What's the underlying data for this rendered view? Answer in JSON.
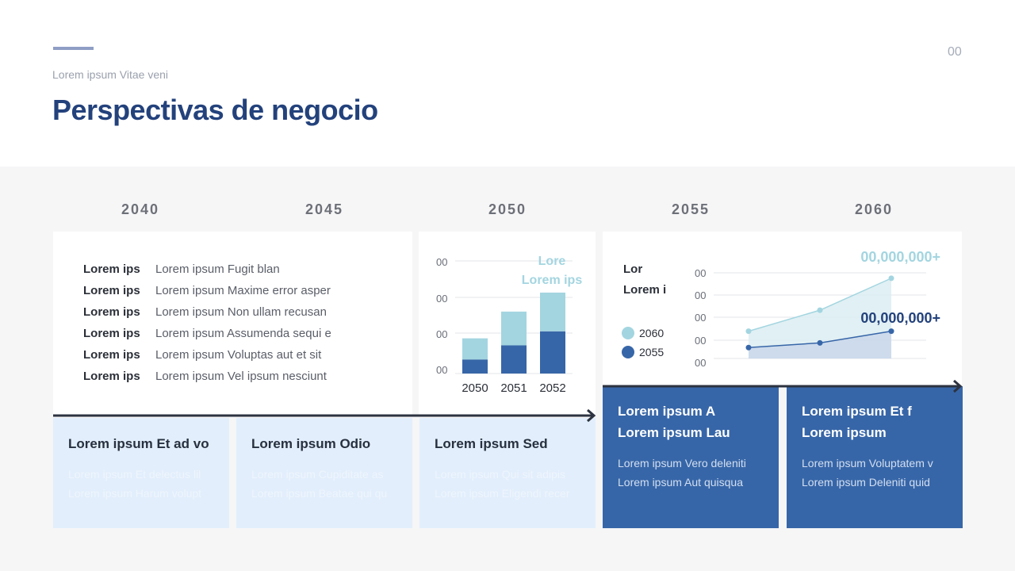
{
  "header": {
    "subtitle": "Lorem ipsum Vitae veni",
    "title": "Perspectivas de negocio",
    "page_number": "00"
  },
  "years": [
    "2040",
    "2045",
    "2050",
    "2055",
    "2060"
  ],
  "list": [
    {
      "key": "Lorem ips",
      "value": "Lorem ipsum Fugit blan"
    },
    {
      "key": "Lorem ips",
      "value": "Lorem ipsum Maxime error asper"
    },
    {
      "key": "Lorem ips",
      "value": "Lorem ipsum Non ullam recusan"
    },
    {
      "key": "Lorem ips",
      "value": "Lorem ipsum Assumenda sequi e"
    },
    {
      "key": "Lorem ips",
      "value": "Lorem ipsum Voluptas aut et sit"
    },
    {
      "key": "Lorem ips",
      "value": "Lorem ipsum Vel ipsum nesciunt"
    }
  ],
  "bar_chart": {
    "legend_title": "Lore",
    "legend_sub": "Lorem ips",
    "y_labels": [
      "00",
      "00",
      "00",
      "00"
    ],
    "categories": [
      "2050",
      "2051",
      "2052"
    ]
  },
  "line_chart": {
    "title_1": "Lor",
    "title_2": "Lorem i",
    "legend": [
      {
        "label": "2060",
        "color": "#a3d5e0"
      },
      {
        "label": "2055",
        "color": "#3766a8"
      }
    ],
    "y_labels": [
      "00",
      "00",
      "00",
      "00",
      "00"
    ],
    "value_top": "00,000,000+",
    "value_bottom": "00,000,000+"
  },
  "chart_data": [
    {
      "type": "bar",
      "categories": [
        "2050",
        "2051",
        "2052"
      ],
      "series": [
        {
          "name": "",
          "values": [
            20,
            40,
            60
          ]
        },
        {
          "name": "",
          "values": [
            30,
            48,
            55
          ]
        }
      ],
      "ylim": [
        0,
        160
      ]
    },
    {
      "type": "area",
      "x": [
        1,
        2,
        3
      ],
      "series": [
        {
          "name": "2060",
          "values": [
            35,
            62,
            103
          ]
        },
        {
          "name": "2055",
          "values": [
            14,
            20,
            35
          ]
        }
      ],
      "ylim": [
        0,
        110
      ]
    }
  ],
  "light_boxes": [
    {
      "head": "Lorem ipsum Et ad vo",
      "line1": "Lorem ipsum Et delectus lil",
      "line2": "Lorem ipsum Harum volupt"
    },
    {
      "head": "Lorem ipsum Odio",
      "line1": "Lorem ipsum Cupiditate as",
      "line2": "Lorem ipsum Beatae qui qu"
    },
    {
      "head": "Lorem ipsum Sed",
      "line1": "Lorem ipsum Qui sit adipis",
      "line2": "Lorem ipsum Eligendi recer"
    }
  ],
  "dark_boxes": [
    {
      "head1": "Lorem ipsum A",
      "head2": "Lorem ipsum Lau",
      "line1": "Lorem ipsum Vero deleniti",
      "line2": "Lorem ipsum Aut quisqua"
    },
    {
      "head1": "Lorem ipsum Et f",
      "head2": "Lorem ipsum",
      "line1": "Lorem ipsum Voluptatem v",
      "line2": "Lorem ipsum Deleniti quid"
    }
  ],
  "colors": {
    "title": "#23427c",
    "dark_blue": "#3766a8",
    "light_blue": "#a3d5e0",
    "pale_blue": "#e2eefc"
  }
}
